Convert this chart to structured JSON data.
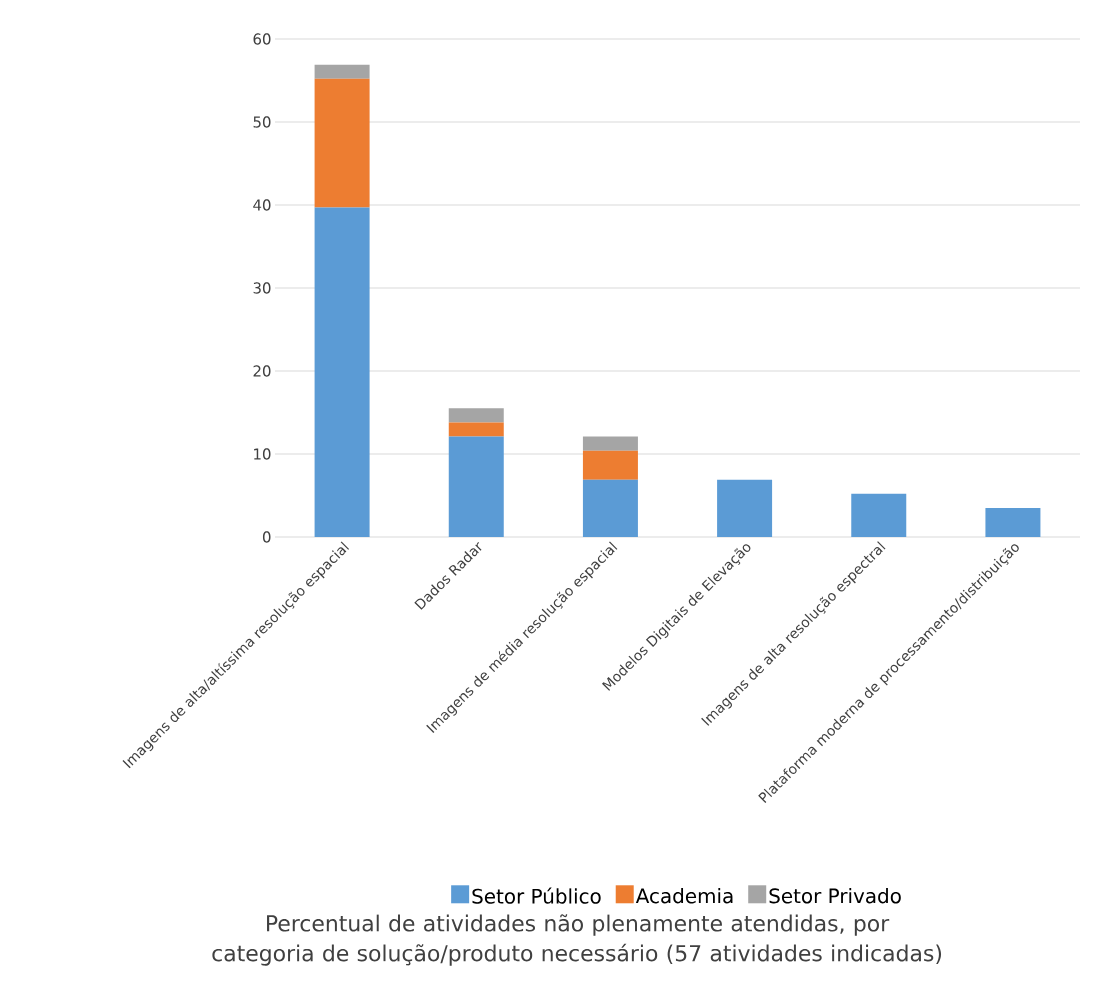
{
  "chart_data": {
    "type": "bar",
    "stacked": true,
    "title": "Percentual de atividades não plenamente atendidas, por categoria de solução/produto necessário (57 atividades indicadas)",
    "categories": [
      "Imagens de alta/altíssima resolução espacial",
      "Dados Radar",
      "Imagens de média resolução espacial",
      "Modelos Digitais de Elevação",
      "Imagens de alta resolução espectral",
      "Plataforma moderna de processamento/distribuição"
    ],
    "series": [
      {
        "name": "Setor Público",
        "color": "#5b9bd5",
        "values": [
          39.7,
          12.1,
          6.9,
          6.9,
          5.2,
          3.5
        ]
      },
      {
        "name": "Academia",
        "color": "#ed7d31",
        "values": [
          15.5,
          1.7,
          3.5,
          null,
          null,
          null
        ]
      },
      {
        "name": "Setor Privado",
        "color": "#a5a5a5",
        "values": [
          1.7,
          1.7,
          1.7,
          null,
          null,
          null
        ]
      }
    ],
    "ylim": [
      0,
      60
    ],
    "yticks": [
      0,
      10,
      20,
      30,
      40,
      50,
      60
    ],
    "grid": "y",
    "legend": "bottom"
  }
}
